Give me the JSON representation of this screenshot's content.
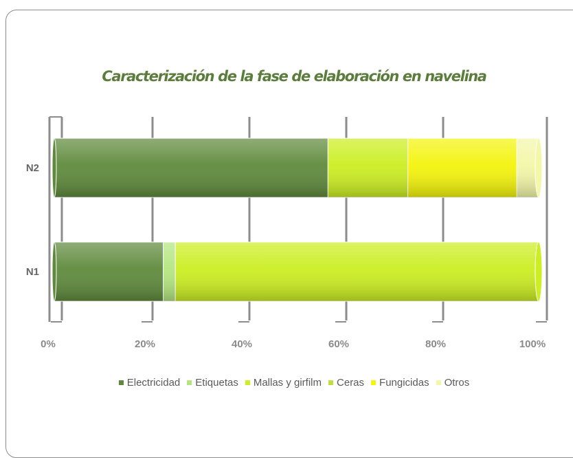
{
  "chart_data": {
    "type": "bar",
    "orientation": "horizontal",
    "stacked": "percent",
    "title": "Caracterización de la fase de elaboración en navelina",
    "xlabel": "",
    "ylabel": "",
    "categories": [
      "N2",
      "N1"
    ],
    "x_ticks": [
      "0%",
      "20%",
      "40%",
      "60%",
      "80%",
      "100%"
    ],
    "xlim": [
      0,
      100
    ],
    "grid": true,
    "legend_position": "bottom",
    "series": [
      {
        "name": "Electricidad",
        "color": "#5f8a3c",
        "values": [
          56.5,
          22.5
        ]
      },
      {
        "name": "Etiquetas",
        "color": "#b3e67f",
        "values": [
          0.0,
          2.5
        ]
      },
      {
        "name": "Mallas y girfilm",
        "color": "#ccee22",
        "values": [
          16.5,
          75.0
        ]
      },
      {
        "name": "Ceras",
        "color": "#bde03e",
        "values": [
          0.0,
          0.0
        ]
      },
      {
        "name": "Fungicidas",
        "color": "#f4f40c",
        "values": [
          22.5,
          0.0
        ]
      },
      {
        "name": "Otros",
        "color": "#f3f7a8",
        "values": [
          4.5,
          0.0
        ]
      }
    ]
  }
}
